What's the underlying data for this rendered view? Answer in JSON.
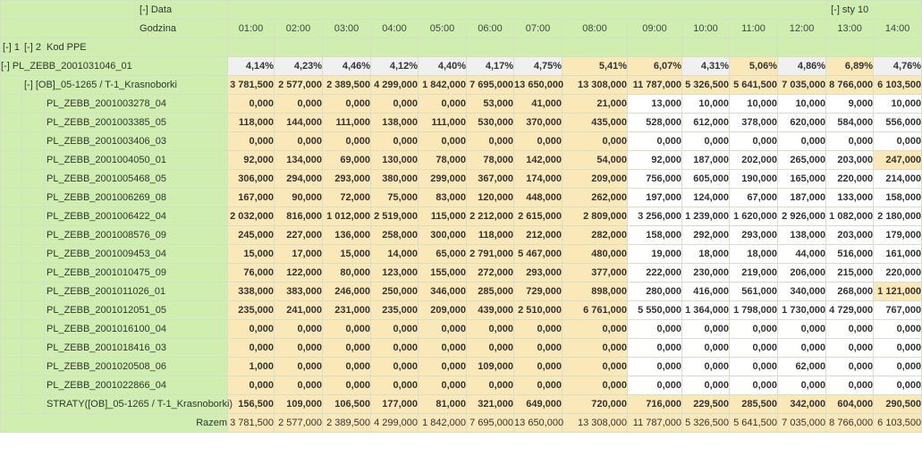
{
  "header": {
    "data_toggle": "[-] Data",
    "godzina": "Godzina",
    "day_toggle": "[-] sty 10",
    "level1": "[-] 1",
    "level2": "[-] 2",
    "kod_ppe": "Kod PPE"
  },
  "hours": [
    "01:00",
    "02:00",
    "03:00",
    "04:00",
    "05:00",
    "06:00",
    "07:00",
    "08:00",
    "09:00",
    "10:00",
    "11:00",
    "12:00",
    "13:00",
    "14:00"
  ],
  "root": {
    "label": "[-] PL_ZEBB_2001031046_01",
    "pct": [
      "4,14%",
      "4,23%",
      "4,46%",
      "4,12%",
      "4,40%",
      "4,17%",
      "4,75%",
      "5,41%",
      "6,07%",
      "4,31%",
      "5,06%",
      "4,86%",
      "6,89%",
      "4,76%"
    ]
  },
  "group": {
    "label": "[-] [OB]_05-1265 / T-1_Krasnoborki",
    "values": [
      "3 781,500",
      "2 577,000",
      "2 389,500",
      "4 299,000",
      "1 842,000",
      "7 695,000",
      "13 650,000",
      "13 308,000",
      "11 787,000",
      "5 326,500",
      "5 641,500",
      "7 035,000",
      "8 766,000",
      "6 103,500"
    ]
  },
  "rows": [
    {
      "label": "PL_ZEBB_2001003278_04",
      "values": [
        "0,000",
        "0,000",
        "0,000",
        "0,000",
        "0,000",
        "53,000",
        "41,000",
        "21,000",
        "13,000",
        "10,000",
        "10,000",
        "10,000",
        "9,000",
        "10,000"
      ]
    },
    {
      "label": "PL_ZEBB_2001003385_05",
      "values": [
        "118,000",
        "144,000",
        "111,000",
        "138,000",
        "111,000",
        "530,000",
        "370,000",
        "435,000",
        "528,000",
        "612,000",
        "378,000",
        "620,000",
        "584,000",
        "556,000"
      ]
    },
    {
      "label": "PL_ZEBB_2001003406_03",
      "values": [
        "0,000",
        "0,000",
        "0,000",
        "0,000",
        "0,000",
        "0,000",
        "0,000",
        "0,000",
        "0,000",
        "0,000",
        "0,000",
        "0,000",
        "0,000",
        "0,000"
      ]
    },
    {
      "label": "PL_ZEBB_2001004050_01",
      "values": [
        "92,000",
        "134,000",
        "69,000",
        "130,000",
        "78,000",
        "78,000",
        "142,000",
        "54,000",
        "92,000",
        "187,000",
        "202,000",
        "265,000",
        "203,000",
        "247,000"
      ]
    },
    {
      "label": "PL_ZEBB_2001005468_05",
      "values": [
        "306,000",
        "294,000",
        "293,000",
        "380,000",
        "299,000",
        "367,000",
        "174,000",
        "209,000",
        "756,000",
        "605,000",
        "190,000",
        "165,000",
        "220,000",
        "214,000"
      ]
    },
    {
      "label": "PL_ZEBB_2001006269_08",
      "values": [
        "167,000",
        "90,000",
        "72,000",
        "75,000",
        "83,000",
        "120,000",
        "448,000",
        "262,000",
        "197,000",
        "124,000",
        "67,000",
        "187,000",
        "133,000",
        "158,000"
      ]
    },
    {
      "label": "PL_ZEBB_2001006422_04",
      "values": [
        "2 032,000",
        "816,000",
        "1 012,000",
        "2 519,000",
        "115,000",
        "2 212,000",
        "2 615,000",
        "2 809,000",
        "3 256,000",
        "1 239,000",
        "1 620,000",
        "2 926,000",
        "1 082,000",
        "2 180,000"
      ]
    },
    {
      "label": "PL_ZEBB_2001008576_09",
      "values": [
        "245,000",
        "227,000",
        "136,000",
        "258,000",
        "300,000",
        "118,000",
        "212,000",
        "282,000",
        "158,000",
        "292,000",
        "293,000",
        "138,000",
        "203,000",
        "179,000"
      ]
    },
    {
      "label": "PL_ZEBB_2001009453_04",
      "values": [
        "15,000",
        "17,000",
        "15,000",
        "14,000",
        "65,000",
        "2 791,000",
        "5 467,000",
        "480,000",
        "19,000",
        "18,000",
        "18,000",
        "44,000",
        "516,000",
        "161,000"
      ]
    },
    {
      "label": "PL_ZEBB_2001010475_09",
      "values": [
        "76,000",
        "122,000",
        "80,000",
        "123,000",
        "155,000",
        "272,000",
        "293,000",
        "377,000",
        "222,000",
        "230,000",
        "219,000",
        "206,000",
        "215,000",
        "220,000"
      ]
    },
    {
      "label": "PL_ZEBB_2001011026_01",
      "values": [
        "338,000",
        "383,000",
        "246,000",
        "250,000",
        "346,000",
        "285,000",
        "729,000",
        "898,000",
        "280,000",
        "416,000",
        "561,000",
        "340,000",
        "268,000",
        "1 121,000"
      ]
    },
    {
      "label": "PL_ZEBB_2001012051_05",
      "values": [
        "235,000",
        "241,000",
        "231,000",
        "235,000",
        "209,000",
        "439,000",
        "2 510,000",
        "6 761,000",
        "5 550,000",
        "1 364,000",
        "1 798,000",
        "1 730,000",
        "4 729,000",
        "767,000"
      ]
    },
    {
      "label": "PL_ZEBB_2001016100_04",
      "values": [
        "0,000",
        "0,000",
        "0,000",
        "0,000",
        "0,000",
        "0,000",
        "0,000",
        "0,000",
        "0,000",
        "0,000",
        "0,000",
        "0,000",
        "0,000",
        "0,000"
      ]
    },
    {
      "label": "PL_ZEBB_2001018416_03",
      "values": [
        "0,000",
        "0,000",
        "0,000",
        "0,000",
        "0,000",
        "0,000",
        "0,000",
        "0,000",
        "0,000",
        "0,000",
        "0,000",
        "0,000",
        "0,000",
        "0,000"
      ]
    },
    {
      "label": "PL_ZEBB_2001020508_06",
      "values": [
        "1,000",
        "0,000",
        "0,000",
        "0,000",
        "0,000",
        "109,000",
        "0,000",
        "0,000",
        "0,000",
        "0,000",
        "0,000",
        "62,000",
        "0,000",
        "0,000"
      ]
    },
    {
      "label": "PL_ZEBB_2001022866_04",
      "values": [
        "0,000",
        "0,000",
        "0,000",
        "0,000",
        "0,000",
        "0,000",
        "0,000",
        "0,000",
        "0,000",
        "0,000",
        "0,000",
        "0,000",
        "0,000",
        "0,000"
      ]
    },
    {
      "label": "STRATY([OB]_05-1265 / T-1_Krasnoborki)",
      "values": [
        "156,500",
        "109,000",
        "106,500",
        "177,000",
        "81,000",
        "321,000",
        "649,000",
        "720,000",
        "716,000",
        "229,500",
        "285,500",
        "342,000",
        "604,000",
        "290,500"
      ]
    }
  ],
  "total": {
    "label": "Razem",
    "values": [
      "3 781,500",
      "2 577,000",
      "2 389,500",
      "4 299,000",
      "1 842,000",
      "7 695,000",
      "13 650,000",
      "13 308,000",
      "11 787,000",
      "5 326,500",
      "5 641,500",
      "7 035,000",
      "8 766,000",
      "6 103,500"
    ]
  },
  "colors": {
    "header_green": "#cfeeb0",
    "cell_yellow": "#fbe8b8",
    "cell_white": "#ffffff",
    "pct_grey": "#f0f0f0"
  }
}
